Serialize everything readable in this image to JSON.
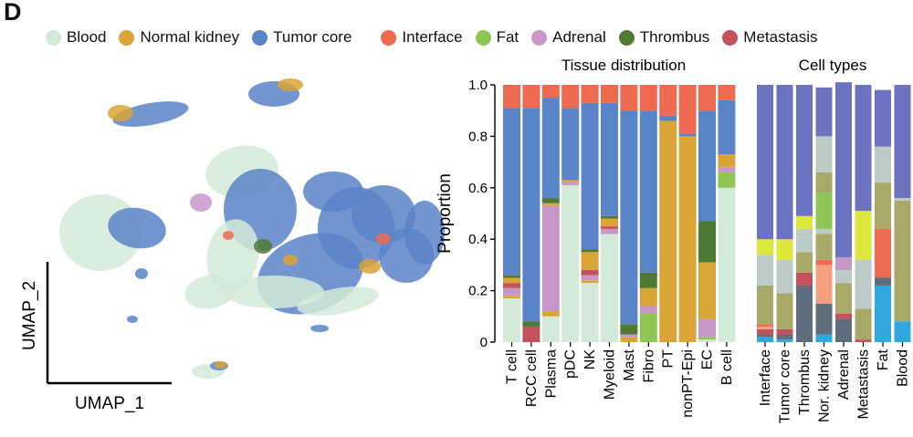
{
  "panel_label": "D",
  "legend": [
    {
      "label": "Blood",
      "color": "#d4ead8"
    },
    {
      "label": "Normal kidney",
      "color": "#d9a536"
    },
    {
      "label": "Tumor core",
      "color": "#5a84c8"
    },
    {
      "label": "Interface",
      "color": "#ee6a50"
    },
    {
      "label": "Fat",
      "color": "#8dc653"
    },
    {
      "label": "Adrenal",
      "color": "#c797c7"
    },
    {
      "label": "Thrombus",
      "color": "#4f7a35"
    },
    {
      "label": "Metastasis",
      "color": "#c4525c"
    }
  ],
  "umap": {
    "xlabel": "UMAP_1",
    "ylabel": "UMAP_2"
  },
  "chart_data": [
    {
      "type": "bar",
      "stacked": true,
      "title": "Tissue distribution",
      "ylabel": "Proportion",
      "ylim": [
        0,
        1
      ],
      "yticks": [
        "0",
        "0.2",
        "0.4",
        "0.6",
        "0.8",
        "1.0"
      ],
      "categories": [
        "T cell",
        "RCC cell",
        "Plasma",
        "pDC",
        "NK",
        "Myeloid",
        "Mast",
        "Fibro",
        "PT",
        "nonPT-Epi",
        "EC",
        "B cell"
      ],
      "series": [
        {
          "name": "Blood",
          "color": "#d4ead8",
          "values": [
            0.17,
            0.0,
            0.1,
            0.61,
            0.23,
            0.42,
            0.0,
            0.0,
            0.0,
            0.0,
            0.01,
            0.6
          ]
        },
        {
          "name": "Normal kidney",
          "color": "#d9a536",
          "values": [
            0.01,
            0.0,
            0.02,
            0.0,
            0.01,
            0.0,
            0.02,
            0.0,
            0.86,
            0.8,
            0.0,
            0.0
          ]
        },
        {
          "name": "Fat",
          "color": "#8dc653",
          "values": [
            0.0,
            0.0,
            0.0,
            0.0,
            0.0,
            0.0,
            0.0,
            0.11,
            0.0,
            0.0,
            0.01,
            0.06
          ]
        },
        {
          "name": "Adrenal",
          "color": "#c797c7",
          "values": [
            0.03,
            0.0,
            0.41,
            0.01,
            0.02,
            0.02,
            0.01,
            0.03,
            0.0,
            0.0,
            0.07,
            0.02
          ]
        },
        {
          "name": "Metastasis",
          "color": "#c4525c",
          "values": [
            0.02,
            0.06,
            0.0,
            0.0,
            0.02,
            0.01,
            0.0,
            0.0,
            0.0,
            0.0,
            0.0,
            0.0
          ]
        },
        {
          "name": "Normal kidney",
          "color": "#d9a536",
          "values": [
            0.02,
            0.0,
            0.01,
            0.01,
            0.07,
            0.03,
            0.0,
            0.07,
            0.0,
            0.0,
            0.22,
            0.05
          ]
        },
        {
          "name": "Thrombus",
          "color": "#4f7a35",
          "values": [
            0.01,
            0.02,
            0.02,
            0.0,
            0.01,
            0.01,
            0.04,
            0.06,
            0.0,
            0.0,
            0.16,
            0.0
          ]
        },
        {
          "name": "Tumor core",
          "color": "#5a84c8",
          "values": [
            0.65,
            0.83,
            0.39,
            0.28,
            0.57,
            0.44,
            0.83,
            0.63,
            0.02,
            0.01,
            0.43,
            0.21
          ]
        },
        {
          "name": "Interface",
          "color": "#ee6a50",
          "values": [
            0.09,
            0.09,
            0.05,
            0.09,
            0.07,
            0.07,
            0.1,
            0.1,
            0.12,
            0.19,
            0.1,
            0.06
          ]
        }
      ]
    },
    {
      "type": "bar",
      "stacked": true,
      "title": "Cell types",
      "categories": [
        "Interface",
        "Tumor core",
        "Thrombus",
        "Nor. kidney",
        "Adrenal",
        "Metastasis",
        "Fat",
        "Blood"
      ],
      "series": [
        {
          "color": "#2fa8e0",
          "values": [
            0.02,
            0.01,
            0.0,
            0.03,
            0.0,
            0.0,
            0.22,
            0.08
          ]
        },
        {
          "color": "#5e6e7d",
          "values": [
            0.01,
            0.02,
            0.22,
            0.12,
            0.09,
            0.0,
            0.03,
            0.0
          ]
        },
        {
          "color": "#c4525c",
          "values": [
            0.02,
            0.02,
            0.05,
            0.0,
            0.02,
            0.01,
            0.0,
            0.0
          ]
        },
        {
          "color": "#f4a07e",
          "values": [
            0.01,
            0.0,
            0.0,
            0.15,
            0.0,
            0.0,
            0.0,
            0.0
          ]
        },
        {
          "color": "#ee6a50",
          "values": [
            0.01,
            0.0,
            0.0,
            0.02,
            0.0,
            0.0,
            0.19,
            0.0
          ]
        },
        {
          "color": "#a8a969",
          "values": [
            0.15,
            0.14,
            0.08,
            0.1,
            0.12,
            0.12,
            0.18,
            0.47
          ]
        },
        {
          "color": "#bccbc7",
          "values": [
            0.12,
            0.13,
            0.06,
            0.02,
            0.05,
            0.19,
            0.14,
            0.01
          ]
        },
        {
          "color": "#8dc653",
          "values": [
            0.0,
            0.0,
            0.0,
            0.14,
            0.0,
            0.0,
            0.0,
            0.0
          ]
        },
        {
          "color": "#c797c7",
          "values": [
            0.0,
            0.0,
            0.0,
            0.0,
            0.05,
            0.0,
            0.0,
            0.0
          ]
        },
        {
          "color": "#a8a969",
          "values": [
            0.0,
            0.0,
            0.0,
            0.08,
            0.0,
            0.0,
            0.0,
            0.0
          ]
        },
        {
          "color": "#bccbc7",
          "values": [
            0.0,
            0.0,
            0.03,
            0.14,
            0.0,
            0.0,
            0.0,
            0.0
          ]
        },
        {
          "color": "#dce83c",
          "values": [
            0.06,
            0.08,
            0.05,
            0.0,
            0.0,
            0.19,
            0.0,
            0.0
          ]
        },
        {
          "color": "#6b72c0",
          "values": [
            0.6,
            0.6,
            0.51,
            0.19,
            0.68,
            0.49,
            0.22,
            0.44
          ]
        }
      ]
    }
  ]
}
